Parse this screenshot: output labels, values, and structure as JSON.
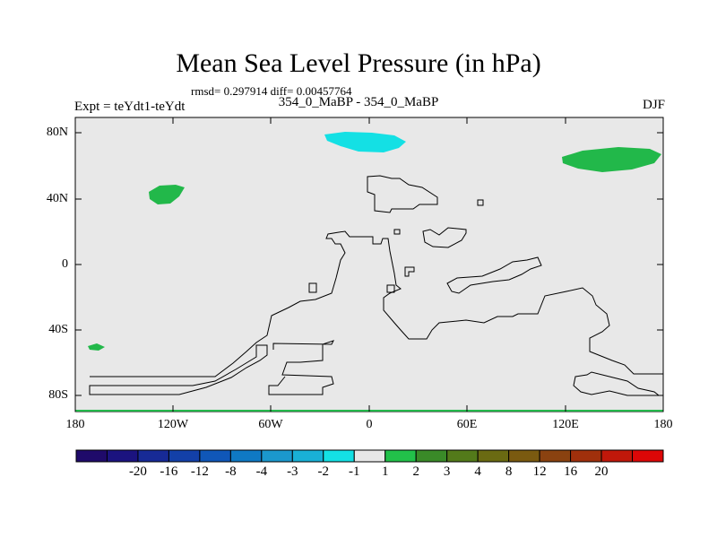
{
  "title": "Mean Sea Level Pressure (in hPa)",
  "stats_text": "rmsd= 0.297914 diff= 0.00457764",
  "left_label": "Expt = teYdt1-teYdt",
  "center_label": "354_0_MaBP - 354_0_MaBP",
  "right_label": "DJF",
  "y_axis": {
    "labels": [
      "80N",
      "40N",
      "0",
      "40S",
      "80S"
    ]
  },
  "x_axis": {
    "labels": [
      "180",
      "120W",
      "60W",
      "0",
      "60E",
      "120E",
      "180"
    ]
  },
  "colorbar": {
    "colors": [
      "#1f0a6a",
      "#1b137f",
      "#172a96",
      "#1340a8",
      "#1057b8",
      "#0f79c4",
      "#1b98cd",
      "#19b0d6",
      "#14e0e4",
      "#e8e8e8",
      "#22c14a",
      "#3a8a28",
      "#537a1a",
      "#6a6a12",
      "#7a5a10",
      "#8a4210",
      "#a0300c",
      "#c0180a",
      "#dd0707"
    ],
    "labels": [
      "-20",
      "-16",
      "-12",
      "-8",
      "-4",
      "-3",
      "-2",
      "-1",
      "1",
      "2",
      "3",
      "4",
      "8",
      "12",
      "16",
      "20"
    ]
  },
  "map_colors": {
    "background": "#e8e8e8",
    "positive": "#22b84a",
    "negative": "#14e0e4",
    "coastline": "#000000"
  }
}
